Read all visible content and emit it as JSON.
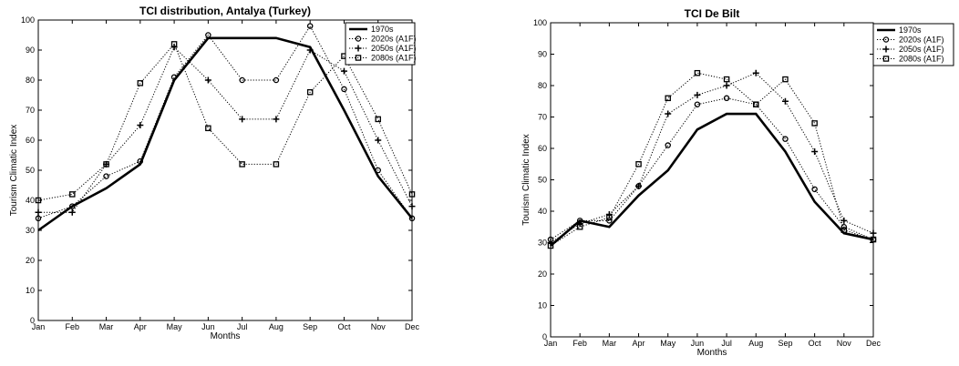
{
  "chart_data": [
    {
      "type": "line",
      "title": "TCI distribution, Antalya (Turkey)",
      "xlabel": "Months",
      "ylabel": "Tourism Climatic Index",
      "categories": [
        "Jan",
        "Feb",
        "Mar",
        "Apr",
        "May",
        "Jun",
        "Jul",
        "Aug",
        "Sep",
        "Oct",
        "Nov",
        "Dec"
      ],
      "ylim": [
        0,
        100
      ],
      "yticks": [
        0,
        10,
        20,
        30,
        40,
        50,
        60,
        70,
        80,
        90,
        100
      ],
      "grid": false,
      "legend_position": "top-right",
      "series": [
        {
          "name": "1970s",
          "style": "solid",
          "marker": "none",
          "values": [
            30,
            38,
            44,
            52,
            80,
            94,
            94,
            94,
            91,
            70,
            48,
            34
          ]
        },
        {
          "name": "2020s (A1F)",
          "style": "dotted",
          "marker": "circle",
          "values": [
            34,
            38,
            48,
            53,
            81,
            95,
            80,
            80,
            98,
            77,
            50,
            34
          ]
        },
        {
          "name": "2050s (A1F)",
          "style": "dotted",
          "marker": "plus",
          "values": [
            36,
            36,
            52,
            65,
            91,
            80,
            67,
            67,
            90,
            83,
            60,
            38
          ]
        },
        {
          "name": "2080s (A1F)",
          "style": "dotted",
          "marker": "square",
          "values": [
            40,
            42,
            52,
            79,
            92,
            64,
            52,
            52,
            76,
            88,
            67,
            42
          ]
        }
      ]
    },
    {
      "type": "line",
      "title": "TCI De Bilt",
      "xlabel": "Months",
      "ylabel": "Tourism Climatic Index",
      "categories": [
        "Jan",
        "Feb",
        "Mar",
        "Apr",
        "May",
        "Jun",
        "Jul",
        "Aug",
        "Sep",
        "Oct",
        "Nov",
        "Dec"
      ],
      "ylim": [
        0,
        100
      ],
      "yticks": [
        0,
        10,
        20,
        30,
        40,
        50,
        60,
        70,
        80,
        90,
        100
      ],
      "grid": false,
      "legend_position": "top-right",
      "series": [
        {
          "name": "1970s",
          "style": "solid",
          "marker": "none",
          "values": [
            29,
            37,
            35,
            45,
            53,
            66,
            71,
            71,
            59,
            43,
            33,
            31
          ]
        },
        {
          "name": "2020s (A1F)",
          "style": "dotted",
          "marker": "circle",
          "values": [
            31,
            37,
            37,
            48,
            61,
            74,
            76,
            74,
            63,
            47,
            35,
            31
          ]
        },
        {
          "name": "2050s (A1F)",
          "style": "dotted",
          "marker": "plus",
          "values": [
            30,
            36,
            39,
            48,
            71,
            77,
            80,
            84,
            75,
            59,
            37,
            33
          ]
        },
        {
          "name": "2080s (A1F)",
          "style": "dotted",
          "marker": "square",
          "values": [
            29,
            35,
            38,
            55,
            76,
            84,
            82,
            74,
            82,
            68,
            34,
            31
          ]
        }
      ]
    }
  ]
}
